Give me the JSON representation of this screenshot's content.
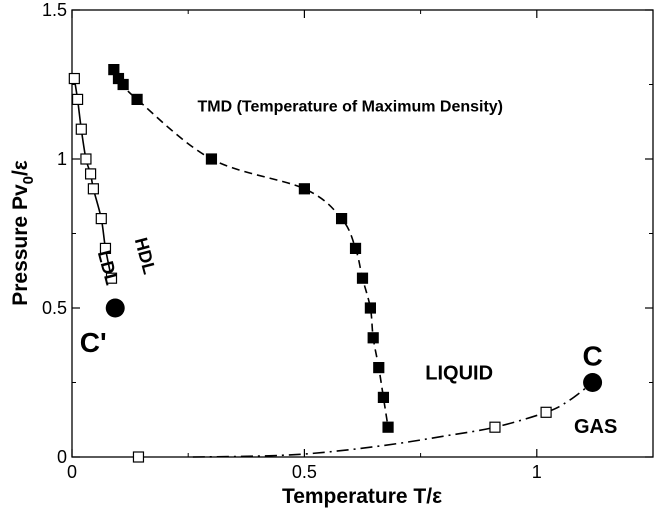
{
  "chart_data": {
    "type": "scatter",
    "xlabel": "Temperature T/ε",
    "ylabel": {
      "prefix": "Pressure Pv",
      "sub": "0",
      "suffix": "/ε"
    },
    "xlim": [
      0,
      1.25
    ],
    "ylim": [
      0,
      1.5
    ],
    "xticks": [
      {
        "value": 0,
        "label": "0"
      },
      {
        "value": 0.5,
        "label": "0.5"
      },
      {
        "value": 1,
        "label": "1"
      }
    ],
    "yticks": [
      {
        "value": 0,
        "label": "0"
      },
      {
        "value": 0.5,
        "label": "0.5"
      },
      {
        "value": 1,
        "label": "1"
      },
      {
        "value": 1.5,
        "label": "1.5"
      }
    ],
    "grid": false,
    "legend": "none",
    "series": [
      {
        "marker": "open-square",
        "line": "solid",
        "color": "#000000",
        "points": [
          [
            0.005,
            1.27
          ],
          [
            0.012,
            1.2
          ],
          [
            0.02,
            1.1
          ],
          [
            0.03,
            1.0
          ],
          [
            0.04,
            0.95
          ],
          [
            0.046,
            0.9
          ],
          [
            0.063,
            0.8
          ],
          [
            0.072,
            0.7
          ],
          [
            0.085,
            0.6
          ]
        ]
      },
      {
        "marker": "filled-square",
        "line": "dashed",
        "color": "#000000",
        "points": [
          [
            0.09,
            1.3
          ],
          [
            0.1,
            1.27
          ],
          [
            0.11,
            1.25
          ],
          [
            0.14,
            1.2
          ],
          [
            0.3,
            1.0
          ],
          [
            0.5,
            0.9
          ],
          [
            0.58,
            0.8
          ],
          [
            0.61,
            0.7
          ],
          [
            0.625,
            0.6
          ],
          [
            0.642,
            0.5
          ],
          [
            0.648,
            0.4
          ],
          [
            0.66,
            0.3
          ],
          [
            0.67,
            0.2
          ],
          [
            0.68,
            0.1
          ]
        ]
      },
      {
        "marker": "open-square",
        "line": "dash-dot",
        "color": "#000000",
        "points": [
          [
            0.143,
            0.0
          ],
          [
            0.91,
            0.1
          ],
          [
            1.02,
            0.15
          ]
        ],
        "curve": [
          [
            0.26,
            0.0
          ],
          [
            0.4,
            0.003
          ],
          [
            0.5,
            0.01
          ],
          [
            0.6,
            0.025
          ],
          [
            0.7,
            0.045
          ],
          [
            0.8,
            0.07
          ],
          [
            0.91,
            0.1
          ],
          [
            1.02,
            0.15
          ],
          [
            1.07,
            0.19
          ],
          [
            1.12,
            0.25
          ]
        ]
      }
    ],
    "critical_points": [
      {
        "label": "C'",
        "x": 0.093,
        "y": 0.5
      },
      {
        "label": "C",
        "x": 1.12,
        "y": 0.25
      }
    ],
    "annotations": [
      {
        "id": "tmd",
        "text": "TMD (Temperature of Maximum Density)",
        "x": 0.27,
        "y": 1.16
      },
      {
        "id": "liquid",
        "text": "LIQUID",
        "x": 0.76,
        "y": 0.26
      },
      {
        "id": "gas",
        "text": "GAS",
        "x": 1.08,
        "y": 0.08
      },
      {
        "id": "hdl",
        "text": "HDL",
        "x": 0.145,
        "y": 0.67,
        "rotate": 75
      },
      {
        "id": "ldl",
        "text": "LDL",
        "x": 0.065,
        "y": 0.63,
        "rotate": 75
      }
    ]
  }
}
